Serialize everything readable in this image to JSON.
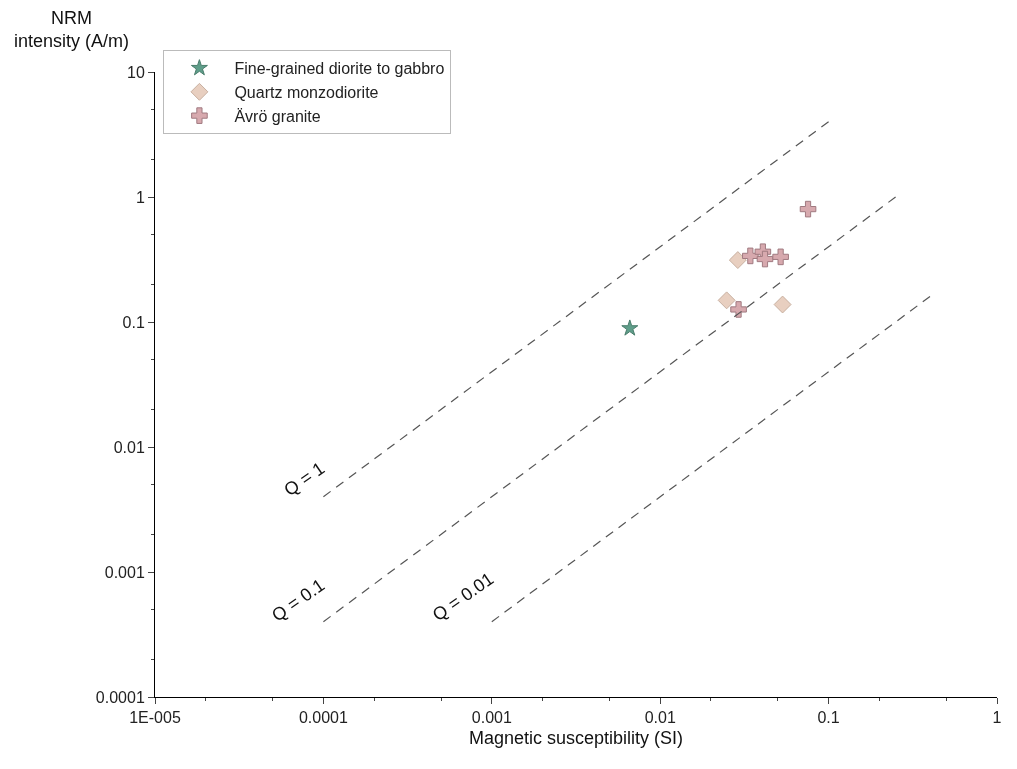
{
  "chart_data": {
    "type": "scatter",
    "xlabel": "Magnetic susceptibility (SI)",
    "ylabel": "NRM\nintensity (A/m)",
    "log": "xy",
    "grid": false,
    "legend": "top left",
    "xlim": [
      1e-05,
      1
    ],
    "xticks": [
      {
        "value": 1e-05,
        "label": "1E-005"
      },
      0.0001,
      0.001,
      0.01,
      0.1,
      1
    ],
    "ylim": [
      0.0001,
      10
    ],
    "yticks": [
      0.0001,
      0.001,
      0.01,
      0.1,
      1,
      10
    ],
    "series": [
      {
        "name": "Fine-grained diorite to gabbro",
        "marker": "star",
        "color": "#5f9e8a",
        "x": [
          0.0066
        ],
        "values": [
          0.089
        ]
      },
      {
        "name": "Quartz monzodiorite",
        "marker": "diamond",
        "color": "#e8cfc0",
        "x": [
          0.0289,
          0.0248,
          0.0533
        ],
        "values": [
          0.313,
          0.149,
          0.138
        ]
      },
      {
        "name": "Ävrö granite",
        "marker": "cross",
        "color": "#d7a9ae",
        "x": [
          0.0755,
          0.0343,
          0.0407,
          0.0419,
          0.0519,
          0.0292
        ],
        "values": [
          0.8,
          0.338,
          0.365,
          0.319,
          0.332,
          0.126
        ]
      },
      {
        "name": "Q = 1",
        "type": "line",
        "line_style": "dashed",
        "color": "#555555",
        "x": [
          0.0001,
          0.1
        ],
        "values": [
          0.004,
          4
        ]
      },
      {
        "name": "Q = 0.1",
        "type": "line",
        "line_style": "dashed",
        "color": "#555555",
        "x": [
          0.0001,
          0.25
        ],
        "values": [
          0.0004,
          1
        ]
      },
      {
        "name": "Q = 0.01",
        "type": "line",
        "line_style": "dashed",
        "color": "#555555",
        "x": [
          0.001,
          0.4
        ],
        "values": [
          0.0004,
          0.16
        ]
      }
    ]
  }
}
